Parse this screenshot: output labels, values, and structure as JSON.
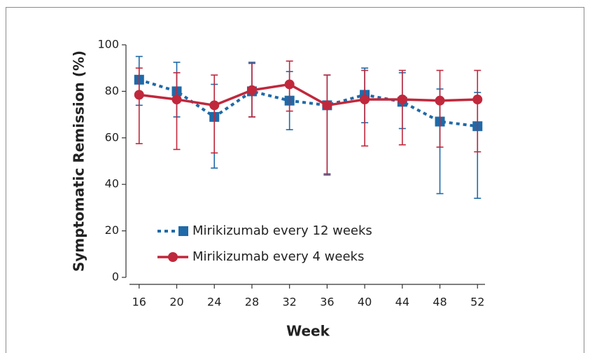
{
  "chart_data": {
    "type": "line",
    "x_label": "Week",
    "y_label": "Symptomatic Remission (%)",
    "x": [
      16,
      20,
      24,
      28,
      32,
      36,
      40,
      44,
      48,
      52
    ],
    "xlim": [
      14.6,
      52.8
    ],
    "xticks": [
      16,
      20,
      24,
      28,
      32,
      36,
      40,
      44,
      48,
      52
    ],
    "ylim": [
      0,
      100
    ],
    "yticks": [
      0,
      20,
      40,
      60,
      80,
      100
    ],
    "legend": "lower left",
    "series": [
      {
        "name": "Mirikizumab every 12 weeks",
        "color": "#1f6aa8",
        "marker": "square",
        "dashed": true,
        "values": [
          85,
          80,
          69,
          80,
          76,
          74,
          78.5,
          75.5,
          67,
          65
        ],
        "lower": [
          74,
          69,
          47,
          69,
          63.5,
          44,
          66.5,
          64,
          36,
          34
        ],
        "upper": [
          95,
          92.5,
          83,
          92.5,
          88.5,
          87,
          90,
          88,
          81,
          79.5
        ]
      },
      {
        "name": "Mirikizumab every 4 weeks",
        "color": "#c0283c",
        "marker": "circle",
        "dashed": false,
        "values": [
          78.5,
          76.5,
          74,
          80.5,
          83,
          74,
          76.5,
          76.5,
          76,
          76.5
        ],
        "lower": [
          57.5,
          55,
          53.5,
          69,
          71.5,
          44.5,
          56.5,
          57,
          56,
          54
        ],
        "upper": [
          90,
          88,
          87,
          92,
          93,
          87,
          89,
          89,
          89,
          89
        ]
      }
    ]
  }
}
